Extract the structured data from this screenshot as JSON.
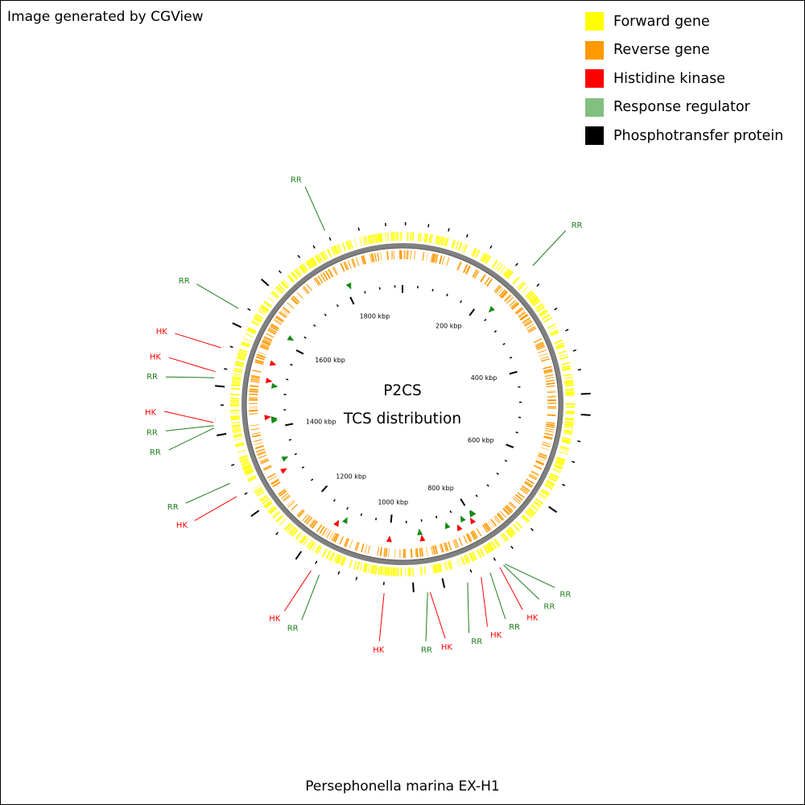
{
  "credit_text": "Image generated by CGView",
  "legend": [
    {
      "label": "Forward gene",
      "color": "#ffff00"
    },
    {
      "label": "Reverse gene",
      "color": "#ff9900"
    },
    {
      "label": "Histidine kinase",
      "color": "#ff0000"
    },
    {
      "label": "Response regulator",
      "color": "#80c080"
    },
    {
      "label": "Phosphotransfer protein",
      "color": "#000000"
    }
  ],
  "center_title": "P2CS",
  "center_subtitle": "TCS distribution",
  "organism": "Persephonella marina EX-H1",
  "backbone_color": "#808080",
  "genome_kbp": 1940,
  "major_ticks": [
    {
      "kbp": 0,
      "label": ""
    },
    {
      "kbp": 200,
      "label": "200 kbp"
    },
    {
      "kbp": 400,
      "label": "400 kbp"
    },
    {
      "kbp": 600,
      "label": "600 kbp"
    },
    {
      "kbp": 800,
      "label": "800 kbp"
    },
    {
      "kbp": 1000,
      "label": "1000 kbp"
    },
    {
      "kbp": 1200,
      "label": "1200 kbp"
    },
    {
      "kbp": 1400,
      "label": "1400 kbp"
    },
    {
      "kbp": 1600,
      "label": "1600 kbp"
    },
    {
      "kbp": 1800,
      "label": "1800 kbp"
    }
  ],
  "tcs_features": [
    {
      "type": "RR",
      "kbp": 233
    },
    {
      "type": "RR",
      "kbp": 794
    },
    {
      "type": "RR",
      "kbp": 797
    },
    {
      "type": "HK",
      "kbp": 804
    },
    {
      "type": "RR",
      "kbp": 822
    },
    {
      "type": "HK",
      "kbp": 838
    },
    {
      "type": "RR",
      "kbp": 862
    },
    {
      "type": "HK",
      "kbp": 925
    },
    {
      "type": "RR",
      "kbp": 929
    },
    {
      "type": "HK",
      "kbp": 1000
    },
    {
      "type": "RR",
      "kbp": 1110
    },
    {
      "type": "HK",
      "kbp": 1125
    },
    {
      "type": "HK",
      "kbp": 1298
    },
    {
      "type": "RR",
      "kbp": 1322
    },
    {
      "type": "RR",
      "kbp": 1416
    },
    {
      "type": "RR",
      "kbp": 1420
    },
    {
      "type": "HK",
      "kbp": 1425
    },
    {
      "type": "RR",
      "kbp": 1498
    },
    {
      "type": "HK",
      "kbp": 1508
    },
    {
      "type": "HK",
      "kbp": 1548
    },
    {
      "type": "RR",
      "kbp": 1618
    },
    {
      "type": "RR",
      "kbp": 1810
    }
  ]
}
